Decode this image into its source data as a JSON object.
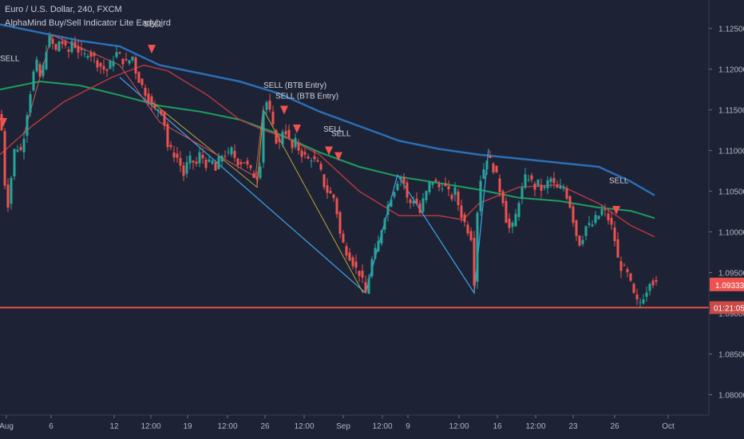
{
  "header": {
    "symbol_line": "Euro / U.S. Dollar, 240, FXCM",
    "indicator_line": "AlphaMind Buy/Sell Indicator Lite Earlybird"
  },
  "colors": {
    "background": "#1e2235",
    "up_candle": "#26a69a",
    "down_candle": "#ef5350",
    "ma_blue": "#2a6fb5",
    "ma_green": "#1e9e5e",
    "ma_red": "#b03a3e",
    "zigzag_light_blue": "#3a9de0",
    "zigzag_yellow": "#b5a63a",
    "zigzag_red": "#d05a5a",
    "horizontal_level": "#e5534b",
    "sell_marker": "#ef5350"
  },
  "chart_data": {
    "type": "candlestick",
    "y_axis": {
      "ticks": [
        "1.12500",
        "1.12000",
        "1.11500",
        "1.11000",
        "1.10500",
        "1.10000",
        "1.09500",
        "1.09000",
        "1.08500",
        "1.08000"
      ],
      "ylim": [
        1.0775,
        1.1285
      ]
    },
    "x_axis": {
      "ticks": [
        "Aug",
        "6",
        "12",
        "12:00",
        "19",
        "12:00",
        "26",
        "12:00",
        "Sep",
        "12:00",
        "9",
        "12:00",
        "16",
        "12:00",
        "23",
        "26",
        "Oct"
      ]
    },
    "price_badge": {
      "value": "1.09333",
      "time": "01:21:05"
    },
    "horizontal_level": 1.0907,
    "path": [
      [
        0,
        1.1135
      ],
      [
        3,
        1.112
      ],
      [
        6,
        1.106
      ],
      [
        9,
        1.103
      ],
      [
        12,
        1.1045
      ],
      [
        16,
        1.109
      ],
      [
        20,
        1.111
      ],
      [
        25,
        1.1095
      ],
      [
        30,
        1.112
      ],
      [
        35,
        1.1155
      ],
      [
        40,
        1.1185
      ],
      [
        45,
        1.121
      ],
      [
        50,
        1.119
      ],
      [
        55,
        1.1205
      ],
      [
        60,
        1.124
      ],
      [
        65,
        1.1232
      ],
      [
        70,
        1.1222
      ],
      [
        75,
        1.1238
      ],
      [
        80,
        1.1228
      ],
      [
        85,
        1.1218
      ],
      [
        90,
        1.1235
      ],
      [
        95,
        1.1228
      ],
      [
        100,
        1.122
      ],
      [
        105,
        1.1215
      ],
      [
        110,
        1.1222
      ],
      [
        115,
        1.1218
      ],
      [
        120,
        1.121
      ],
      [
        125,
        1.1205
      ],
      [
        130,
        1.12
      ],
      [
        135,
        1.1198
      ],
      [
        140,
        1.121
      ],
      [
        145,
        1.122
      ],
      [
        150,
        1.1215
      ],
      [
        155,
        1.121
      ],
      [
        160,
        1.1205
      ],
      [
        165,
        1.122
      ],
      [
        170,
        1.1198
      ],
      [
        175,
        1.1185
      ],
      [
        180,
        1.1175
      ],
      [
        185,
        1.1168
      ],
      [
        190,
        1.1155
      ],
      [
        195,
        1.1148
      ],
      [
        200,
        1.1155
      ],
      [
        205,
        1.114
      ],
      [
        210,
        1.1105
      ],
      [
        215,
        1.1098
      ],
      [
        220,
        1.1095
      ],
      [
        225,
        1.1085
      ],
      [
        230,
        1.107
      ],
      [
        235,
        1.1085
      ],
      [
        240,
        1.109
      ],
      [
        245,
        1.108
      ],
      [
        250,
        1.1095
      ],
      [
        255,
        1.109
      ],
      [
        260,
        1.108
      ],
      [
        265,
        1.1088
      ],
      [
        270,
        1.1075
      ],
      [
        275,
        1.109
      ],
      [
        280,
        1.1098
      ],
      [
        285,
        1.1092
      ],
      [
        290,
        1.11
      ],
      [
        295,
        1.109
      ],
      [
        300,
        1.1085
      ],
      [
        305,
        1.1088
      ],
      [
        310,
        1.108
      ],
      [
        315,
        1.1072
      ],
      [
        320,
        1.1068
      ],
      [
        325,
        1.107
      ],
      [
        330,
        1.115
      ],
      [
        335,
        1.1162
      ],
      [
        340,
        1.1135
      ],
      [
        345,
        1.1115
      ],
      [
        350,
        1.1108
      ],
      [
        355,
        1.113
      ],
      [
        360,
        1.112
      ],
      [
        365,
        1.11
      ],
      [
        370,
        1.111
      ],
      [
        375,
        1.11
      ],
      [
        380,
        1.1095
      ],
      [
        385,
        1.1088
      ],
      [
        390,
        1.1092
      ],
      [
        395,
        1.1085
      ],
      [
        400,
        1.108
      ],
      [
        405,
        1.106
      ],
      [
        410,
        1.105
      ],
      [
        415,
        1.1045
      ],
      [
        420,
        1.104
      ],
      [
        425,
        1.1
      ],
      [
        430,
        1.0985
      ],
      [
        435,
        1.0975
      ],
      [
        440,
        1.0968
      ],
      [
        445,
        1.0955
      ],
      [
        450,
        1.095
      ],
      [
        455,
        1.0935
      ],
      [
        458,
        1.0925
      ],
      [
        462,
        1.0945
      ],
      [
        466,
        1.0965
      ],
      [
        470,
        1.0975
      ],
      [
        475,
        1.099
      ],
      [
        480,
        1.1015
      ],
      [
        485,
        1.103
      ],
      [
        490,
        1.1045
      ],
      [
        495,
        1.1055
      ],
      [
        500,
        1.107
      ],
      [
        505,
        1.1065
      ],
      [
        510,
        1.104
      ],
      [
        515,
        1.1035
      ],
      [
        520,
        1.1045
      ],
      [
        525,
        1.102
      ],
      [
        530,
        1.1038
      ],
      [
        535,
        1.105
      ],
      [
        540,
        1.1065
      ],
      [
        545,
        1.106
      ],
      [
        550,
        1.1055
      ],
      [
        555,
        1.106
      ],
      [
        560,
        1.105
      ],
      [
        565,
        1.1042
      ],
      [
        570,
        1.105
      ],
      [
        575,
        1.103
      ],
      [
        580,
        1.1015
      ],
      [
        585,
        1.1005
      ],
      [
        590,
        1.0995
      ],
      [
        594,
        1.094
      ],
      [
        597,
        1.101
      ],
      [
        600,
        1.106
      ],
      [
        605,
        1.1075
      ],
      [
        610,
        1.1092
      ],
      [
        615,
        1.1085
      ],
      [
        620,
        1.1075
      ],
      [
        625,
        1.1055
      ],
      [
        630,
        1.104
      ],
      [
        635,
        1.101
      ],
      [
        640,
        1.1
      ],
      [
        645,
        1.1015
      ],
      [
        650,
        1.104
      ],
      [
        655,
        1.1055
      ],
      [
        660,
        1.1072
      ],
      [
        665,
        1.1062
      ],
      [
        670,
        1.1055
      ],
      [
        675,
        1.106
      ],
      [
        680,
        1.1048
      ],
      [
        685,
        1.106
      ],
      [
        690,
        1.1065
      ],
      [
        695,
        1.1055
      ],
      [
        700,
        1.105
      ],
      [
        705,
        1.1058
      ],
      [
        710,
        1.1045
      ],
      [
        715,
        1.103
      ],
      [
        720,
        1.1005
      ],
      [
        725,
        1.0985
      ],
      [
        730,
        1.0995
      ],
      [
        735,
        1.101
      ],
      [
        740,
        1.1005
      ],
      [
        745,
        1.1015
      ],
      [
        750,
        1.102
      ],
      [
        755,
        1.1028
      ],
      [
        760,
        1.102
      ],
      [
        765,
        1.101
      ],
      [
        770,
        1.099
      ],
      [
        775,
        1.096
      ],
      [
        780,
        1.0955
      ],
      [
        785,
        1.095
      ],
      [
        790,
        1.0935
      ],
      [
        795,
        1.0918
      ],
      [
        800,
        1.091
      ],
      [
        805,
        1.092
      ],
      [
        810,
        1.093
      ],
      [
        815,
        1.0945
      ],
      [
        820,
        1.0935
      ],
      [
        824,
        1.0933
      ]
    ],
    "ma_blue": [
      [
        0,
        1.1255
      ],
      [
        100,
        1.1235
      ],
      [
        150,
        1.1228
      ],
      [
        200,
        1.1205
      ],
      [
        300,
        1.1185
      ],
      [
        350,
        1.117
      ],
      [
        400,
        1.1148
      ],
      [
        450,
        1.113
      ],
      [
        500,
        1.1112
      ],
      [
        550,
        1.1102
      ],
      [
        600,
        1.1095
      ],
      [
        650,
        1.109
      ],
      [
        700,
        1.1085
      ],
      [
        750,
        1.108
      ],
      [
        790,
        1.1062
      ],
      [
        820,
        1.1045
      ]
    ],
    "ma_green": [
      [
        0,
        1.1175
      ],
      [
        50,
        1.1185
      ],
      [
        100,
        1.118
      ],
      [
        150,
        1.1168
      ],
      [
        200,
        1.1155
      ],
      [
        250,
        1.1148
      ],
      [
        300,
        1.1138
      ],
      [
        350,
        1.112
      ],
      [
        400,
        1.1098
      ],
      [
        450,
        1.108
      ],
      [
        500,
        1.1068
      ],
      [
        550,
        1.106
      ],
      [
        600,
        1.1052
      ],
      [
        650,
        1.1042
      ],
      [
        700,
        1.1038
      ],
      [
        750,
        1.103
      ],
      [
        790,
        1.1026
      ],
      [
        820,
        1.1017
      ]
    ],
    "ma_red": [
      [
        0,
        1.1095
      ],
      [
        40,
        1.113
      ],
      [
        80,
        1.116
      ],
      [
        140,
        1.119
      ],
      [
        180,
        1.1205
      ],
      [
        210,
        1.1198
      ],
      [
        260,
        1.1168
      ],
      [
        300,
        1.1138
      ],
      [
        330,
        1.1125
      ],
      [
        360,
        1.1115
      ],
      [
        400,
        1.1095
      ],
      [
        450,
        1.105
      ],
      [
        500,
        1.102
      ],
      [
        550,
        1.102
      ],
      [
        580,
        1.1015
      ],
      [
        600,
        1.1035
      ],
      [
        650,
        1.1055
      ],
      [
        700,
        1.1058
      ],
      [
        750,
        1.1035
      ],
      [
        790,
        1.1008
      ],
      [
        820,
        1.0994
      ]
    ],
    "zigzag_blue": [
      [
        150,
        1.119
      ],
      [
        458,
        1.0925
      ],
      [
        498,
        1.107
      ],
      [
        594,
        1.0925
      ],
      [
        612,
        1.1102
      ]
    ],
    "zigzag_yellow": [
      [
        190,
        1.116
      ],
      [
        322,
        1.1055
      ],
      [
        330,
        1.115
      ],
      [
        455,
        1.0925
      ]
    ],
    "zigzag_red": [
      [
        30,
        1.112
      ],
      [
        65,
        1.1242
      ],
      [
        150,
        1.1205
      ],
      [
        200,
        1.1135
      ],
      [
        320,
        1.1068
      ],
      [
        330,
        1.1155
      ]
    ],
    "sell_markers": [
      {
        "x": 4,
        "price": 1.114,
        "label": "SELL"
      },
      {
        "x": 190,
        "price": 1.123,
        "label": "SELL"
      },
      {
        "x": 356,
        "price": 1.1155,
        "label": "SELL (BTB Entry)"
      },
      {
        "x": 372,
        "price": 1.1132,
        "label": ""
      },
      {
        "x": 412,
        "price": 1.1105,
        "label": "SELL"
      },
      {
        "x": 424,
        "price": 1.1098,
        "label": ""
      },
      {
        "x": 772,
        "price": 1.1032,
        "label": "SELL"
      }
    ],
    "sell_texts": [
      {
        "x": 180,
        "price": 1.1252,
        "text": "SELL"
      },
      {
        "x": 0,
        "price": 1.121,
        "text": "SELL"
      },
      {
        "x": 330,
        "price": 1.1177,
        "text": "SELL (BTB Entry)"
      },
      {
        "x": 345,
        "price": 1.1164,
        "text": "SELL (BTB Entry)"
      },
      {
        "x": 405,
        "price": 1.1123,
        "text": "SELL"
      },
      {
        "x": 415,
        "price": 1.1118,
        "text": "SELL"
      },
      {
        "x": 763,
        "price": 1.106,
        "text": "SELL"
      }
    ]
  }
}
